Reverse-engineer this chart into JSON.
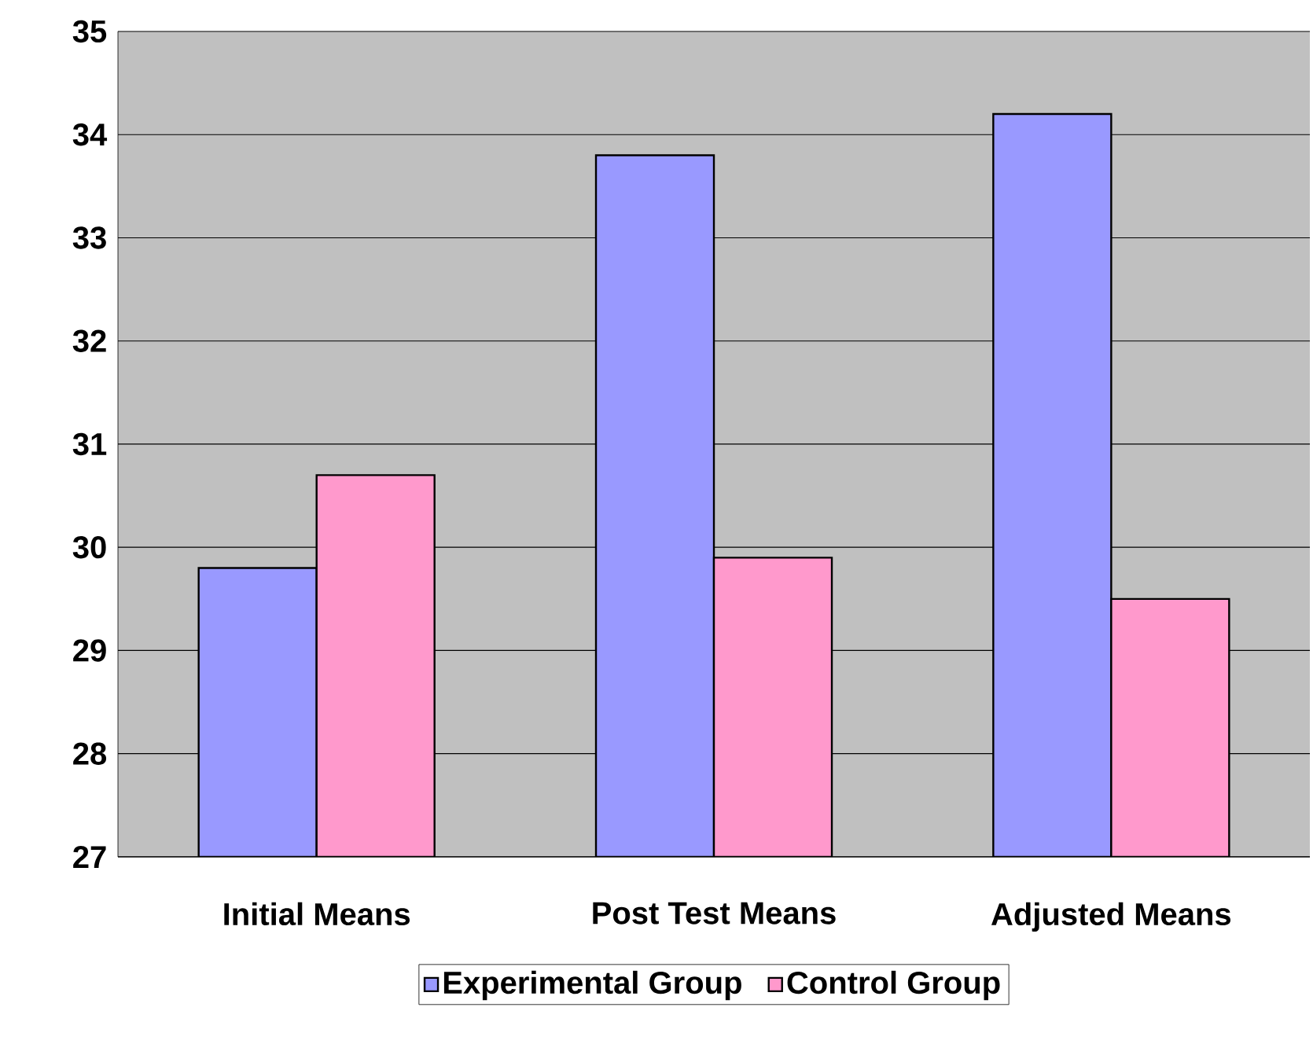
{
  "chart_data": {
    "type": "bar",
    "categories": [
      "Initial Means",
      "Post Test Means",
      "Adjusted Means"
    ],
    "series": [
      {
        "name": "Experimental Group",
        "color": "#9999ff",
        "values": [
          29.8,
          33.8,
          34.2
        ]
      },
      {
        "name": "Control Group",
        "color": "#ff99cc",
        "values": [
          30.7,
          29.9,
          29.5
        ]
      }
    ],
    "ylim": [
      27,
      35
    ],
    "yticks": [
      27,
      28,
      29,
      30,
      31,
      32,
      33,
      34,
      35
    ],
    "grid": "y",
    "legend": "bottom"
  }
}
